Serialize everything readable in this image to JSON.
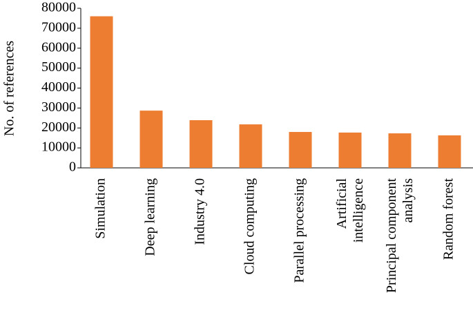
{
  "chart_data": {
    "type": "bar",
    "y_label": "No. of references",
    "categories": [
      "Simulation",
      "Deep learning",
      "Industry 4.0",
      "Cloud computing",
      "Parallel processing",
      "Artificial intelligence",
      "Principal component analysis",
      "Random forest"
    ],
    "values": [
      76000,
      28700,
      23900,
      21800,
      18000,
      17700,
      17300,
      16300
    ],
    "color": "#ed7d31",
    "ylim": [
      0,
      80000
    ],
    "yticks": [
      0,
      10000,
      20000,
      30000,
      40000,
      50000,
      60000,
      70000,
      80000
    ]
  }
}
